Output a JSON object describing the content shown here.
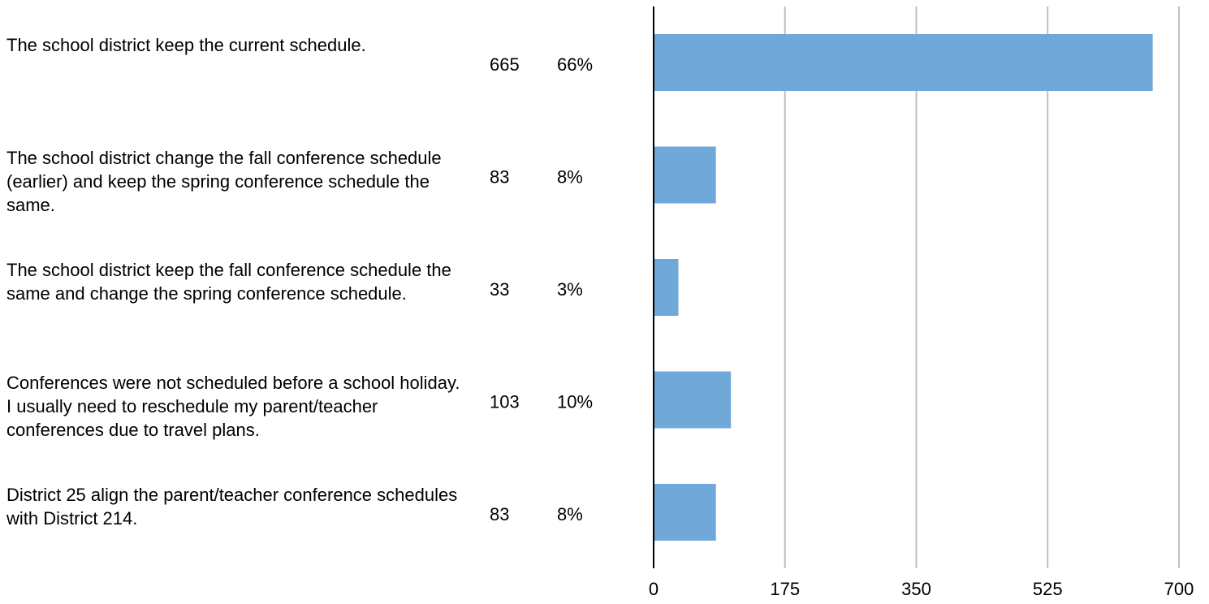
{
  "chart_data": {
    "type": "bar",
    "orientation": "horizontal",
    "categories": [
      "The school district keep the current schedule.",
      "The school district change the fall conference schedule (earlier) and keep the spring conference schedule the same.",
      "The school district keep the fall conference schedule the same and change the spring conference schedule.",
      "Conferences were not scheduled before a school holiday. I usually need to reschedule my parent/teacher conferences due to travel plans.",
      "District 25 align the parent/teacher conference schedules with District 214."
    ],
    "values": [
      665,
      83,
      33,
      103,
      83
    ],
    "percent_labels": [
      "66%",
      "8%",
      "3%",
      "10%",
      "8%"
    ],
    "color": "#6fa8d9",
    "xlim": [
      0,
      700
    ],
    "xticks": [
      0,
      175,
      350,
      525,
      700
    ],
    "grid": true
  }
}
